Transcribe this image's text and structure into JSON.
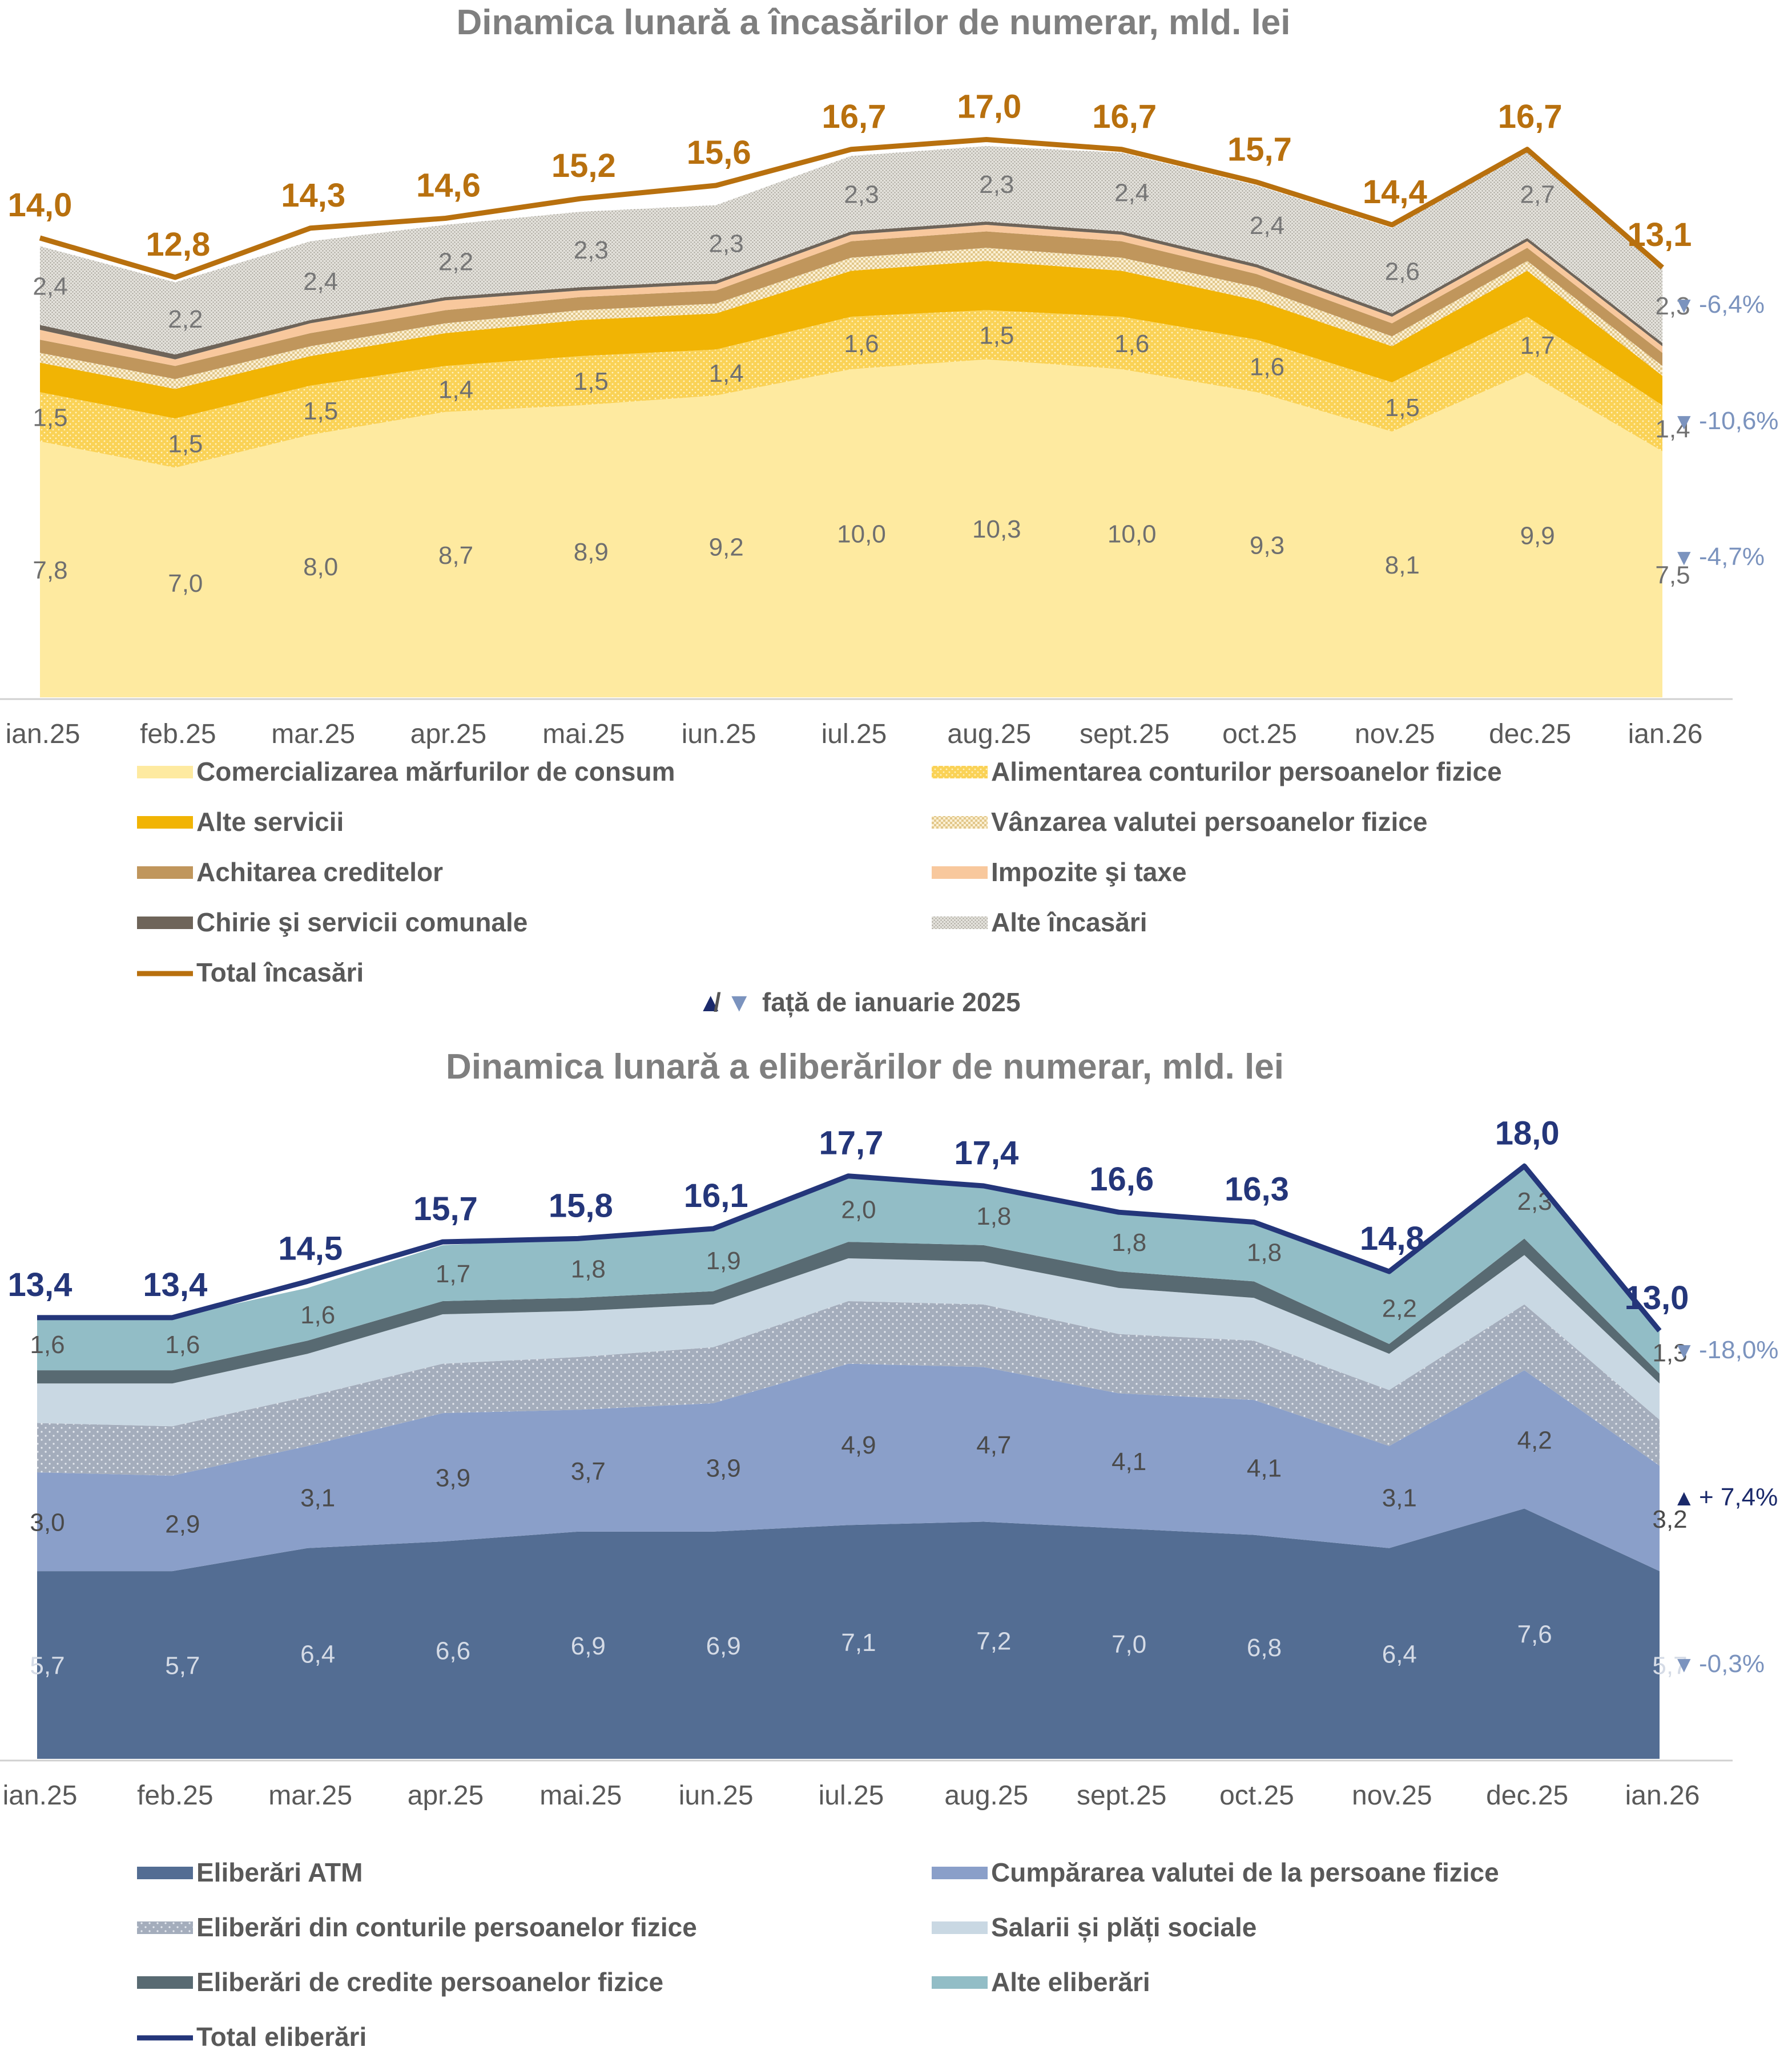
{
  "note": {
    "up_glyph": "▲",
    "sep": "/",
    "down_glyph": "▼",
    "text": "față de ianuarie 2025"
  },
  "colors": {
    "total_inc": "#B8700E",
    "total_eli": "#24367A",
    "down_marker": "#7B93BE",
    "up_marker": "#1B2A6B"
  },
  "chart_data": [
    {
      "type": "area",
      "stacked": true,
      "title": "Dinamica lunară a încasărilor de numerar, mld. lei",
      "categories": [
        "ian.25",
        "feb.25",
        "mar.25",
        "apr.25",
        "mai.25",
        "iun.25",
        "iul.25",
        "aug.25",
        "sept.25",
        "oct.25",
        "nov.25",
        "dec.25",
        "ian.26"
      ],
      "ylim": [
        0,
        18
      ],
      "series": [
        {
          "name": "Comercializarea mărfurilor de consum",
          "values": [
            7.8,
            7.0,
            8.0,
            8.7,
            8.9,
            9.2,
            10.0,
            10.3,
            10.0,
            9.3,
            8.1,
            9.9,
            7.5
          ],
          "labeled": true,
          "color": "#FEEAA0"
        },
        {
          "name": "Alimentarea conturilor persoanelor fizice",
          "values": [
            1.5,
            1.5,
            1.5,
            1.4,
            1.5,
            1.4,
            1.6,
            1.5,
            1.6,
            1.6,
            1.5,
            1.7,
            1.4
          ],
          "labeled": true,
          "color": "#FAD256"
        },
        {
          "name": "Alte servicii",
          "values": [
            0.9,
            0.9,
            0.9,
            1.0,
            1.1,
            1.1,
            1.4,
            1.5,
            1.4,
            1.2,
            1.1,
            1.4,
            0.9
          ],
          "labeled": false,
          "color": "#F1B404"
        },
        {
          "name": "Vânzarea valutei persoanelor fizice",
          "values": [
            0.3,
            0.3,
            0.3,
            0.3,
            0.3,
            0.3,
            0.4,
            0.4,
            0.4,
            0.4,
            0.3,
            0.3,
            0.3
          ],
          "labeled": false,
          "color": "#F4DFAA"
        },
        {
          "name": "Achitarea creditelor",
          "values": [
            0.4,
            0.4,
            0.4,
            0.4,
            0.4,
            0.4,
            0.5,
            0.5,
            0.5,
            0.4,
            0.4,
            0.4,
            0.4
          ],
          "labeled": false,
          "color": "#C0965C"
        },
        {
          "name": "Impozite şi taxe",
          "values": [
            0.3,
            0.2,
            0.3,
            0.3,
            0.2,
            0.2,
            0.2,
            0.2,
            0.2,
            0.2,
            0.2,
            0.2,
            0.2
          ],
          "labeled": false,
          "color": "#F8C89D"
        },
        {
          "name": "Chirie şi servicii comunale",
          "values": [
            0.15,
            0.15,
            0.1,
            0.1,
            0.1,
            0.1,
            0.1,
            0.1,
            0.1,
            0.1,
            0.1,
            0.1,
            0.1
          ],
          "labeled": false,
          "color": "#6E6459"
        },
        {
          "name": "Alte încasări",
          "values": [
            2.4,
            2.2,
            2.4,
            2.2,
            2.3,
            2.3,
            2.3,
            2.3,
            2.4,
            2.4,
            2.6,
            2.7,
            2.3
          ],
          "labeled": true,
          "color": "#D7D5CF"
        }
      ],
      "total": {
        "name": "Total încasări",
        "values": [
          14.0,
          12.8,
          14.3,
          14.6,
          15.2,
          15.6,
          16.7,
          17.0,
          16.7,
          15.7,
          14.4,
          16.7,
          13.1
        ]
      },
      "value_labels": {
        "Comercializarea mărfurilor de consum": [
          "7,8",
          "7,0",
          "8,0",
          "8,7",
          "8,9",
          "9,2",
          "10,0",
          "10,3",
          "10,0",
          "9,3",
          "8,1",
          "9,9",
          "7,5"
        ],
        "Alimentarea conturilor persoanelor fizice": [
          "1,5",
          "1,5",
          "1,5",
          "1,4",
          "1,5",
          "1,4",
          "1,6",
          "1,5",
          "1,6",
          "1,6",
          "1,5",
          "1,7",
          "1,4"
        ],
        "Alte încasări": [
          "2,4",
          "2,2",
          "2,4",
          "2,2",
          "2,3",
          "2,3",
          "2,3",
          "2,3",
          "2,4",
          "2,4",
          "2,6",
          "2,7",
          "2,3"
        ],
        "Total încasări": [
          "14,0",
          "12,8",
          "14,3",
          "14,6",
          "15,2",
          "15,6",
          "16,7",
          "17,0",
          "16,7",
          "15,7",
          "14,4",
          "16,7",
          "13,1"
        ]
      },
      "changes": [
        {
          "glyph": "▼",
          "value": "-6,4%",
          "direction": "down",
          "series": "Alte încasări"
        },
        {
          "glyph": "▼",
          "value": "-10,6%",
          "direction": "down",
          "series": "Alimentarea conturilor persoanelor fizice"
        },
        {
          "glyph": "▼",
          "value": "-4,7%",
          "direction": "down",
          "series": "Comercializarea mărfurilor de consum"
        }
      ],
      "legend": [
        "Comercializarea mărfurilor de consum",
        "Alimentarea conturilor persoanelor fizice",
        "Alte servicii",
        "Vânzarea valutei persoanelor fizice",
        "Achitarea creditelor",
        "Impozite şi taxe",
        "Chirie şi servicii comunale",
        "Alte încasări",
        "Total încasări"
      ]
    },
    {
      "type": "area",
      "stacked": true,
      "title": "Dinamica lunară a eliberărilor de numerar, mld. lei",
      "categories": [
        "ian.25",
        "feb.25",
        "mar.25",
        "apr.25",
        "mai.25",
        "iun.25",
        "iul.25",
        "aug.25",
        "sept.25",
        "oct.25",
        "nov.25",
        "dec.25",
        "ian.26"
      ],
      "ylim": [
        0,
        20
      ],
      "series": [
        {
          "name": "Eliberări ATM",
          "values": [
            5.7,
            5.7,
            6.4,
            6.6,
            6.9,
            6.9,
            7.1,
            7.2,
            7.0,
            6.8,
            6.4,
            7.6,
            5.7
          ],
          "labeled": true,
          "color": "#536D93"
        },
        {
          "name": "Cumpărarea valutei de la persoane fizice",
          "values": [
            3.0,
            2.9,
            3.1,
            3.9,
            3.7,
            3.9,
            4.9,
            4.7,
            4.1,
            4.1,
            3.1,
            4.2,
            3.2
          ],
          "labeled": true,
          "color": "#8A9FC9"
        },
        {
          "name": "Eliberări din conturile persoanelor fizice",
          "values": [
            1.5,
            1.5,
            1.5,
            1.5,
            1.6,
            1.7,
            1.9,
            1.9,
            1.8,
            1.8,
            1.7,
            2.0,
            1.4
          ],
          "labeled": false,
          "color": "#A9B3C2"
        },
        {
          "name": "Salarii și plăți sociale",
          "values": [
            1.2,
            1.3,
            1.3,
            1.5,
            1.4,
            1.3,
            1.3,
            1.3,
            1.4,
            1.3,
            1.1,
            1.5,
            1.1
          ],
          "labeled": false,
          "color": "#C9D8E3"
        },
        {
          "name": "Eliberări de credite persoanelor fizice",
          "values": [
            0.4,
            0.4,
            0.4,
            0.4,
            0.4,
            0.4,
            0.5,
            0.5,
            0.5,
            0.5,
            0.3,
            0.5,
            0.3
          ],
          "labeled": false,
          "color": "#586A72"
        },
        {
          "name": "Alte eliberări",
          "values": [
            1.6,
            1.6,
            1.6,
            1.7,
            1.8,
            1.9,
            2.0,
            1.8,
            1.8,
            1.8,
            2.2,
            2.3,
            1.3
          ],
          "labeled": true,
          "color": "#92BDC6"
        }
      ],
      "total": {
        "name": "Total eliberări",
        "values": [
          13.4,
          13.4,
          14.5,
          15.7,
          15.8,
          16.1,
          17.7,
          17.4,
          16.6,
          16.3,
          14.8,
          18.0,
          13.0
        ]
      },
      "value_labels": {
        "Eliberări ATM": [
          "5,7",
          "5,7",
          "6,4",
          "6,6",
          "6,9",
          "6,9",
          "7,1",
          "7,2",
          "7,0",
          "6,8",
          "6,4",
          "7,6",
          "5,7"
        ],
        "Cumpărarea valutei de la persoane fizice": [
          "3,0",
          "2,9",
          "3,1",
          "3,9",
          "3,7",
          "3,9",
          "4,9",
          "4,7",
          "4,1",
          "4,1",
          "3,1",
          "4,2",
          "3,2"
        ],
        "Alte eliberări": [
          "1,6",
          "1,6",
          "1,6",
          "1,7",
          "1,8",
          "1,9",
          "2,0",
          "1,8",
          "1,8",
          "1,8",
          "2,2",
          "2,3",
          "1,3"
        ],
        "Total eliberări": [
          "13,4",
          "13,4",
          "14,5",
          "15,7",
          "15,8",
          "16,1",
          "17,7",
          "17,4",
          "16,6",
          "16,3",
          "14,8",
          "18,0",
          "13,0"
        ]
      },
      "changes": [
        {
          "glyph": "▼",
          "value": "-18,0%",
          "direction": "down",
          "series": "Alte eliberări"
        },
        {
          "glyph": "▲",
          "value": "+ 7,4%",
          "direction": "up",
          "series": "Cumpărarea valutei de la persoane fizice"
        },
        {
          "glyph": "▼",
          "value": "-0,3%",
          "direction": "down",
          "series": "Eliberări ATM"
        }
      ],
      "legend": [
        "Eliberări ATM",
        "Cumpărarea valutei de la persoane fizice",
        "Eliberări din conturile persoanelor fizice",
        "Salarii și plăți sociale",
        "Eliberări de credite persoanelor fizice",
        "Alte eliberări",
        "Total eliberări"
      ]
    }
  ]
}
